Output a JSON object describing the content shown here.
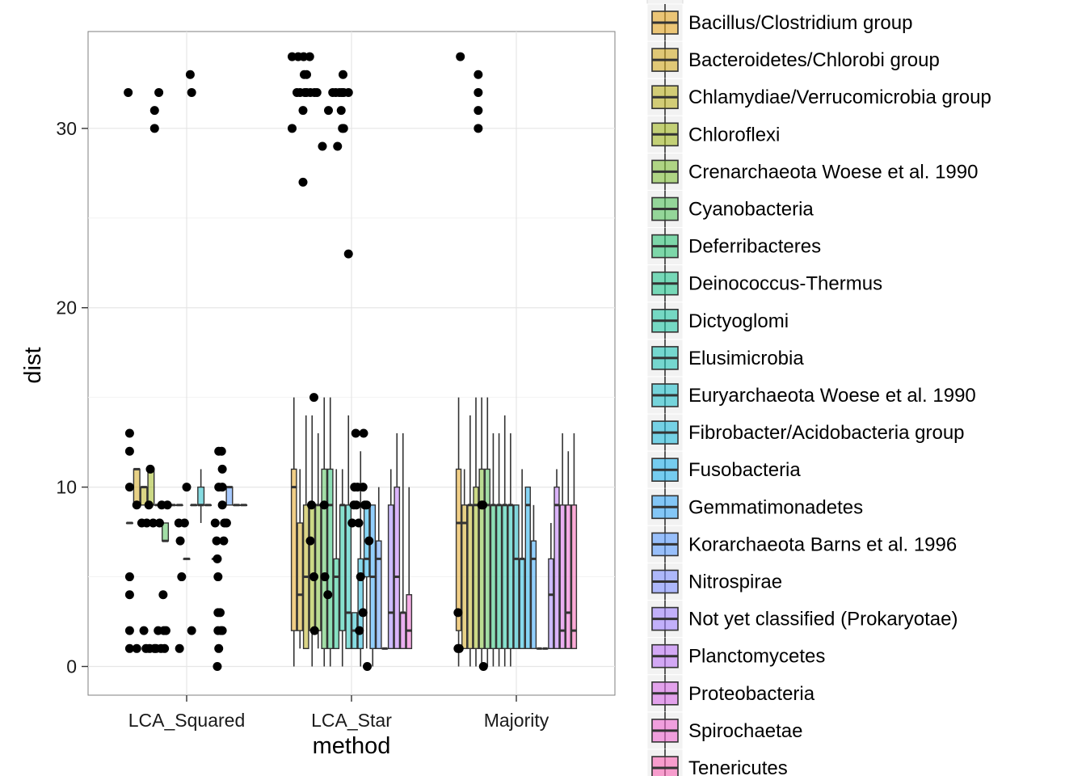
{
  "chart_data": {
    "type": "boxplot",
    "xlabel": "method",
    "ylabel": "dist",
    "ylim": [
      -1.6,
      35.4
    ],
    "yticks": [
      0,
      10,
      20,
      30
    ],
    "categories": [
      "LCA_Squared",
      "LCA_Star",
      "Majority"
    ],
    "legend_position": "right",
    "legend_entries": [
      {
        "name": "Bacillus/Clostridium group",
        "color": "#E6A623"
      },
      {
        "name": "Bacteroidetes/Chlorobi group",
        "color": "#D3AC23"
      },
      {
        "name": "Chlamydiae/Verrucomicrobia group",
        "color": "#BDB323"
      },
      {
        "name": "Chloroflexi",
        "color": "#A3B923"
      },
      {
        "name": "Crenarchaeota Woese et al. 1990",
        "color": "#82BF3A"
      },
      {
        "name": "Cyanobacteria",
        "color": "#55C35D"
      },
      {
        "name": "Deferribacteres",
        "color": "#2EC578"
      },
      {
        "name": "Deinococcus-Thermus",
        "color": "#23C68F"
      },
      {
        "name": "Dictyoglomi",
        "color": "#22C6A4"
      },
      {
        "name": "Elusimicrobia",
        "color": "#22C4B8"
      },
      {
        "name": "Euryarchaeota Woese et al. 1990",
        "color": "#22C0CB"
      },
      {
        "name": "Fibrobacter/Acidobacteria group",
        "color": "#22BADC"
      },
      {
        "name": "Fusobacteria",
        "color": "#22B2EC"
      },
      {
        "name": "Gemmatimonadetes",
        "color": "#38A8F9"
      },
      {
        "name": "Korarchaeota Barns et al. 1996",
        "color": "#5C9CFF"
      },
      {
        "name": "Nitrospirae",
        "color": "#7F8FFF"
      },
      {
        "name": "Not yet classified (Prokaryotae)",
        "color": "#A284FF"
      },
      {
        "name": "Planctomycetes",
        "color": "#BE77F7"
      },
      {
        "name": "Proteobacteria",
        "color": "#D96DE6"
      },
      {
        "name": "Spirochaetae",
        "color": "#EE67CF"
      },
      {
        "name": "Tenericutes",
        "color": "#FA64B4"
      }
    ],
    "boxes": {
      "LCA_Squared": [
        {
          "g": 0,
          "q1": 8,
          "median": 8,
          "q3": 8,
          "lo": 8,
          "hi": 8
        },
        {
          "g": 1,
          "q1": 9,
          "median": 11,
          "q3": 11,
          "lo": 9,
          "hi": 11
        },
        {
          "g": 2,
          "q1": 9,
          "median": 10,
          "q3": 10,
          "lo": 9,
          "hi": 10
        },
        {
          "g": 3,
          "q1": 9,
          "median": 11,
          "q3": 11,
          "lo": 9,
          "hi": 11
        },
        {
          "g": 4,
          "q1": 9,
          "median": 9,
          "q3": 9,
          "lo": 9,
          "hi": 9
        },
        {
          "g": 5,
          "q1": 7,
          "median": 7,
          "q3": 8,
          "lo": 7,
          "hi": 8
        },
        {
          "g": 6,
          "q1": 9,
          "median": 9,
          "q3": 9,
          "lo": 9,
          "hi": 9
        },
        {
          "g": 7,
          "q1": 9,
          "median": 9,
          "q3": 9,
          "lo": 9,
          "hi": 9
        },
        {
          "g": 8,
          "q1": 6,
          "median": 6,
          "q3": 6,
          "lo": 6,
          "hi": 6
        },
        {
          "g": 9,
          "q1": 9,
          "median": 9,
          "q3": 9,
          "lo": 9,
          "hi": 9
        },
        {
          "g": 10,
          "q1": 9,
          "median": 9,
          "q3": 10,
          "lo": 8,
          "hi": 11
        },
        {
          "g": 11,
          "q1": 9,
          "median": 9,
          "q3": 9,
          "lo": 9,
          "hi": 9
        },
        {
          "g": 12,
          "q1": 6,
          "median": 6,
          "q3": 6,
          "lo": 6,
          "hi": 6
        },
        {
          "g": 13,
          "q1": 9,
          "median": 9,
          "q3": 9,
          "lo": 9,
          "hi": 9
        },
        {
          "g": 14,
          "q1": 9,
          "median": 10,
          "q3": 10,
          "lo": 9,
          "hi": 10
        },
        {
          "g": 15,
          "q1": 9,
          "median": 9,
          "q3": 9,
          "lo": 9,
          "hi": 9
        },
        {
          "g": 16,
          "q1": 9,
          "median": 9,
          "q3": 9,
          "lo": 9,
          "hi": 9
        }
      ],
      "LCA_Star": [
        {
          "g": 0,
          "q1": 2,
          "median": 10,
          "q3": 11,
          "lo": 0,
          "hi": 15
        },
        {
          "g": 1,
          "q1": 2,
          "median": 4,
          "q3": 8,
          "lo": 1,
          "hi": 11
        },
        {
          "g": 2,
          "q1": 1,
          "median": 5,
          "q3": 9,
          "lo": 1,
          "hi": 14
        },
        {
          "g": 3,
          "q1": 2,
          "median": 9,
          "q3": 9,
          "lo": 0,
          "hi": 14
        },
        {
          "g": 4,
          "q1": 2,
          "median": 9,
          "q3": 9,
          "lo": 1,
          "hi": 13
        },
        {
          "g": 5,
          "q1": 1,
          "median": 9,
          "q3": 11,
          "lo": 0,
          "hi": 15
        },
        {
          "g": 6,
          "q1": 1,
          "median": 9,
          "q3": 11,
          "lo": 0,
          "hi": 15
        },
        {
          "g": 7,
          "q1": 1,
          "median": 5,
          "q3": 6,
          "lo": 1,
          "hi": 11
        },
        {
          "g": 8,
          "q1": 2,
          "median": 9,
          "q3": 9,
          "lo": 0,
          "hi": 11
        },
        {
          "g": 9,
          "q1": 1,
          "median": 3,
          "q3": 9,
          "lo": 1,
          "hi": 14
        },
        {
          "g": 10,
          "q1": 1,
          "median": 2,
          "q3": 3,
          "lo": 1,
          "hi": 3
        },
        {
          "g": 11,
          "q1": 1,
          "median": 5,
          "q3": 6,
          "lo": 0,
          "hi": 12
        },
        {
          "g": 12,
          "q1": 5,
          "median": 6,
          "q3": 9,
          "lo": 1,
          "hi": 9
        },
        {
          "g": 13,
          "q1": 1,
          "median": 5,
          "q3": 9,
          "lo": 0,
          "hi": 9
        },
        {
          "g": 14,
          "q1": 1,
          "median": 6,
          "q3": 7,
          "lo": 1,
          "hi": 10
        },
        {
          "g": 15,
          "q1": 1,
          "median": 1,
          "q3": 1,
          "lo": 1,
          "hi": 1
        },
        {
          "g": 16,
          "q1": 1,
          "median": 3,
          "q3": 9,
          "lo": 1,
          "hi": 11
        },
        {
          "g": 17,
          "q1": 1,
          "median": 5,
          "q3": 10,
          "lo": 1,
          "hi": 13
        },
        {
          "g": 18,
          "q1": 1,
          "median": 3,
          "q3": 3,
          "lo": 1,
          "hi": 13
        },
        {
          "g": 19,
          "q1": 1,
          "median": 2,
          "q3": 4,
          "lo": 1,
          "hi": 10
        }
      ],
      "Majority": [
        {
          "g": 0,
          "q1": 2,
          "median": 8,
          "q3": 11,
          "lo": 0,
          "hi": 15
        },
        {
          "g": 1,
          "q1": 1,
          "median": 8,
          "q3": 9,
          "lo": 1,
          "hi": 11
        },
        {
          "g": 2,
          "q1": 1,
          "median": 9,
          "q3": 9,
          "lo": 0,
          "hi": 14
        },
        {
          "g": 3,
          "q1": 1,
          "median": 9,
          "q3": 10,
          "lo": 0,
          "hi": 15
        },
        {
          "g": 4,
          "q1": 1,
          "median": 9,
          "q3": 11,
          "lo": 0,
          "hi": 15
        },
        {
          "g": 5,
          "q1": 1,
          "median": 9,
          "q3": 11,
          "lo": 0,
          "hi": 15
        },
        {
          "g": 6,
          "q1": 1,
          "median": 9,
          "q3": 9,
          "lo": 0,
          "hi": 13
        },
        {
          "g": 7,
          "q1": 1,
          "median": 9,
          "q3": 9,
          "lo": 0,
          "hi": 13
        },
        {
          "g": 8,
          "q1": 1,
          "median": 9,
          "q3": 9,
          "lo": 0,
          "hi": 14
        },
        {
          "g": 9,
          "q1": 1,
          "median": 9,
          "q3": 9,
          "lo": 0,
          "hi": 13
        },
        {
          "g": 10,
          "q1": 1,
          "median": 6,
          "q3": 9,
          "lo": 1,
          "hi": 9
        },
        {
          "g": 11,
          "q1": 1,
          "median": 6,
          "q3": 6,
          "lo": 1,
          "hi": 11
        },
        {
          "g": 12,
          "q1": 1,
          "median": 9,
          "q3": 10,
          "lo": 1,
          "hi": 10
        },
        {
          "g": 13,
          "q1": 1,
          "median": 6,
          "q3": 7,
          "lo": 1,
          "hi": 9
        },
        {
          "g": 14,
          "q1": 1,
          "median": 1,
          "q3": 1,
          "lo": 1,
          "hi": 1
        },
        {
          "g": 15,
          "q1": 1,
          "median": 1,
          "q3": 1,
          "lo": 1,
          "hi": 1
        },
        {
          "g": 16,
          "q1": 1,
          "median": 4,
          "q3": 6,
          "lo": 1,
          "hi": 8
        },
        {
          "g": 17,
          "q1": 1,
          "median": 9,
          "q3": 10,
          "lo": 1,
          "hi": 11
        },
        {
          "g": 18,
          "q1": 1,
          "median": 2,
          "q3": 9,
          "lo": 1,
          "hi": 13
        },
        {
          "g": 19,
          "q1": 1,
          "median": 3,
          "q3": 9,
          "lo": 1,
          "hi": 12
        },
        {
          "g": 20,
          "q1": 1,
          "median": 2,
          "q3": 9,
          "lo": 1,
          "hi": 13
        }
      ]
    },
    "points": {
      "LCA_Squared": [
        [
          0.5,
          13
        ],
        [
          0.5,
          12
        ],
        [
          0.5,
          10
        ],
        [
          0.5,
          5
        ],
        [
          0.5,
          4
        ],
        [
          0.5,
          2
        ],
        [
          0.5,
          1
        ],
        [
          1.5,
          9
        ],
        [
          1.5,
          1
        ],
        [
          2.2,
          8
        ],
        [
          2.5,
          2
        ],
        [
          2.8,
          1
        ],
        [
          2.9,
          8
        ],
        [
          3.2,
          9
        ],
        [
          3.3,
          1
        ],
        [
          3.4,
          11
        ],
        [
          3.8,
          8
        ],
        [
          4.0,
          1
        ],
        [
          4.2,
          1
        ],
        [
          4.5,
          2
        ],
        [
          4.7,
          8
        ],
        [
          4.9,
          1
        ],
        [
          5.0,
          9
        ],
        [
          5.2,
          4
        ],
        [
          5.3,
          2
        ],
        [
          5.4,
          1
        ],
        [
          5.6,
          2
        ],
        [
          5.8,
          9
        ],
        [
          7.4,
          8
        ],
        [
          7.5,
          1
        ],
        [
          7.6,
          7
        ],
        [
          7.8,
          5
        ],
        [
          8.2,
          8
        ],
        [
          8.5,
          10
        ],
        [
          9.2,
          2
        ],
        [
          12.5,
          8
        ],
        [
          12.7,
          7
        ],
        [
          12.8,
          0
        ],
        [
          12.8,
          6
        ],
        [
          12.9,
          5
        ],
        [
          12.9,
          3
        ],
        [
          12.9,
          2
        ],
        [
          13.0,
          12
        ],
        [
          13.0,
          10
        ],
        [
          13.0,
          1
        ],
        [
          13.2,
          3
        ],
        [
          13.3,
          2
        ],
        [
          13.4,
          12
        ],
        [
          13.5,
          11
        ],
        [
          13.5,
          10
        ],
        [
          13.5,
          9
        ],
        [
          13.5,
          2
        ],
        [
          13.7,
          7
        ],
        [
          13.8,
          8
        ],
        [
          14.1,
          8
        ],
        [
          0.3,
          32
        ],
        [
          4.0,
          31
        ],
        [
          4.0,
          30
        ],
        [
          4.6,
          32
        ],
        [
          9.0,
          33
        ],
        [
          9.2,
          32
        ]
      ],
      "LCA_Star": [
        [
          0.2,
          34
        ],
        [
          0.2,
          30
        ],
        [
          1.0,
          32
        ],
        [
          1.2,
          34
        ],
        [
          1.5,
          32
        ],
        [
          2.0,
          27
        ],
        [
          2.0,
          31
        ],
        [
          2.1,
          34
        ],
        [
          2.2,
          33
        ],
        [
          2.3,
          32
        ],
        [
          2.6,
          33
        ],
        [
          2.6,
          32
        ],
        [
          3.1,
          34
        ],
        [
          3.2,
          32
        ],
        [
          3.9,
          32
        ],
        [
          4.3,
          32
        ],
        [
          5.2,
          29
        ],
        [
          6.2,
          31
        ],
        [
          6.9,
          32
        ],
        [
          7.4,
          32
        ],
        [
          7.7,
          29
        ],
        [
          8.0,
          32
        ],
        [
          8.3,
          31
        ],
        [
          8.4,
          32
        ],
        [
          8.5,
          30
        ],
        [
          8.6,
          33
        ],
        [
          8.7,
          32
        ],
        [
          8.7,
          30
        ],
        [
          9.5,
          32
        ],
        [
          9.5,
          23
        ],
        [
          3.8,
          15
        ],
        [
          3.4,
          9
        ],
        [
          3.2,
          7
        ],
        [
          3.8,
          5
        ],
        [
          3.9,
          2
        ],
        [
          5.5,
          9
        ],
        [
          6.1,
          4
        ],
        [
          5.6,
          5
        ],
        [
          10.5,
          10
        ],
        [
          10.4,
          9
        ],
        [
          10.1,
          8
        ],
        [
          11.0,
          10
        ],
        [
          10.7,
          13
        ],
        [
          10.8,
          9
        ],
        [
          11.2,
          8
        ],
        [
          11.5,
          5
        ],
        [
          11.9,
          10
        ],
        [
          12.2,
          9
        ],
        [
          12.0,
          13
        ],
        [
          12.5,
          9
        ],
        [
          12.9,
          7
        ],
        [
          12.6,
          0
        ],
        [
          11.9,
          3
        ],
        [
          11.3,
          2
        ]
      ],
      "Majority": [
        [
          0.8,
          34
        ],
        [
          3.9,
          33
        ],
        [
          3.9,
          32
        ],
        [
          3.9,
          31
        ],
        [
          3.9,
          30
        ],
        [
          0.4,
          3
        ],
        [
          0.4,
          1
        ],
        [
          0.6,
          1
        ],
        [
          4.5,
          9
        ],
        [
          4.7,
          9
        ],
        [
          4.8,
          0
        ]
      ]
    }
  },
  "page_text": {
    "x_title": "method",
    "y_title": "dist"
  }
}
